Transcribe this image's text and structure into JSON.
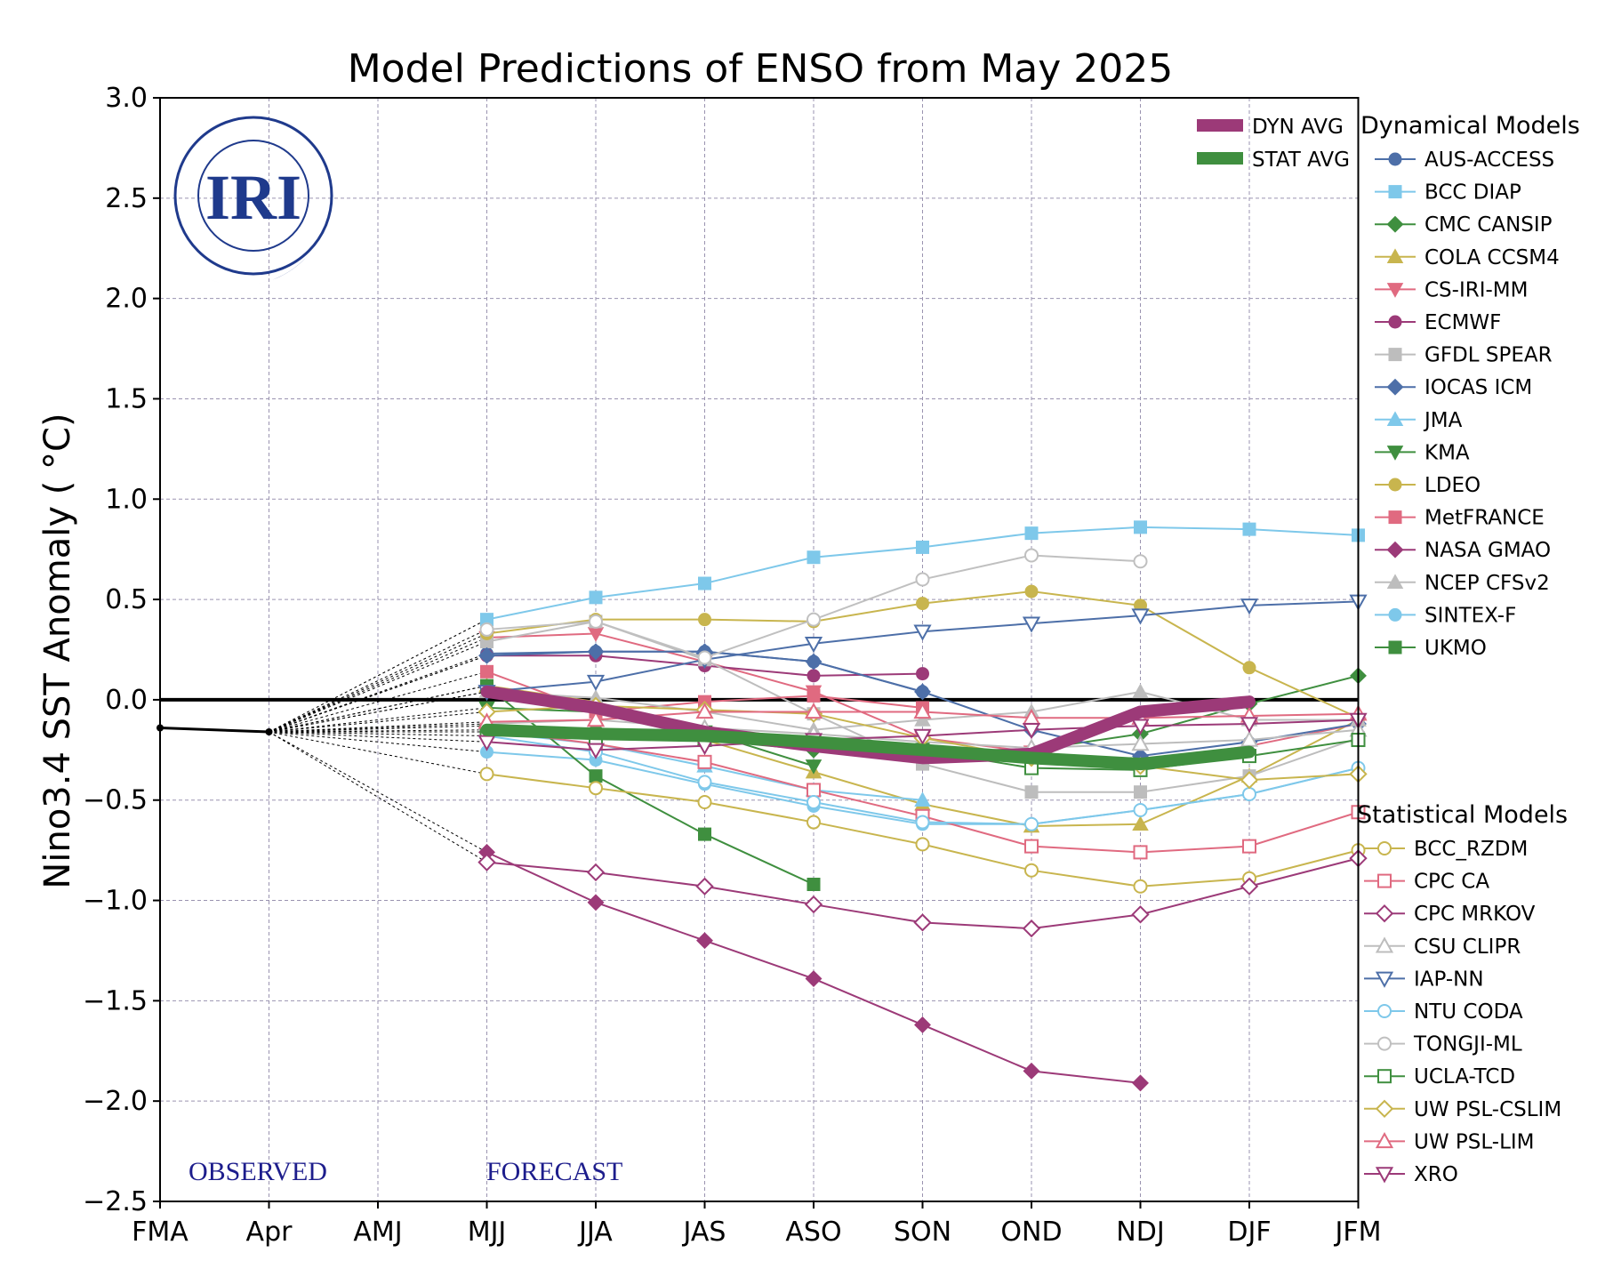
{
  "chart_data": {
    "type": "line",
    "title": "Model Predictions of ENSO from May 2025",
    "ylabel": "Nino3.4 SST Anomaly ( °C)",
    "xlabel": "",
    "categories": [
      "FMA",
      "Apr",
      "AMJ",
      "MJJ",
      "JJA",
      "JAS",
      "ASO",
      "SON",
      "OND",
      "NDJ",
      "DJF",
      "JFM"
    ],
    "ylim": [
      -2.5,
      3.0
    ],
    "yticks": [
      "3.0",
      "2.5",
      "2.0",
      "1.5",
      "1.0",
      "0.5",
      "0.0",
      "−0.5",
      "−1.0",
      "−1.5",
      "−2.0",
      "−2.5"
    ],
    "grid": true,
    "annotations": {
      "observed": "OBSERVED",
      "forecast": "FORECAST",
      "logo": "IRI"
    },
    "observed": {
      "x": [
        "FMA",
        "Apr"
      ],
      "values": [
        -0.14,
        -0.16
      ]
    },
    "legend": {
      "averages_position": "top-right",
      "dynamical_title": "Dynamical Models",
      "statistical_title": "Statistical Models"
    },
    "averages": [
      {
        "name": "DYN AVG",
        "color": "#9c3a78",
        "values": [
          0.04,
          -0.04,
          -0.16,
          -0.23,
          -0.29,
          -0.27,
          -0.06,
          -0.01
        ]
      },
      {
        "name": "STAT AVG",
        "color": "#3f8f3f",
        "values": [
          -0.15,
          -0.17,
          -0.18,
          -0.21,
          -0.25,
          -0.29,
          -0.32,
          -0.26
        ]
      }
    ],
    "dynamical": [
      {
        "name": "AUS-ACCESS",
        "color": "#4d6fa8",
        "marker": "circle",
        "fill": true,
        "values": [
          0.23,
          0.24,
          0.24,
          0.19,
          0.04
        ]
      },
      {
        "name": "BCC DIAP",
        "color": "#7ec8ea",
        "marker": "square",
        "fill": true,
        "values": [
          0.4,
          0.51,
          0.58,
          0.71,
          0.76,
          0.83,
          0.86,
          0.85,
          0.82
        ]
      },
      {
        "name": "CMC CANSIP",
        "color": "#3f8f3f",
        "marker": "diamond",
        "fill": true,
        "values": [
          -0.13,
          -0.15,
          -0.2,
          -0.25,
          -0.3,
          -0.25,
          -0.17,
          -0.02,
          0.12
        ]
      },
      {
        "name": "COLA CCSM4",
        "color": "#c8b54e",
        "marker": "triangle-up",
        "fill": true,
        "values": [
          0.07,
          -0.01,
          -0.2,
          -0.36,
          -0.52,
          -0.63,
          -0.62,
          -0.38,
          -0.1
        ]
      },
      {
        "name": "CS-IRI-MM",
        "color": "#e06a80",
        "marker": "triangle-down",
        "fill": true,
        "values": [
          0.31,
          0.33,
          0.19,
          0.04,
          -0.19,
          -0.26,
          -0.31,
          -0.23,
          -0.12
        ]
      },
      {
        "name": "ECMWF",
        "color": "#9c3a78",
        "marker": "circle",
        "fill": true,
        "values": [
          0.22,
          0.22,
          0.17,
          0.12,
          0.13
        ]
      },
      {
        "name": "GFDL SPEAR",
        "color": "#bdbdbd",
        "marker": "square",
        "fill": true,
        "values": [
          0.29,
          0.39,
          0.2,
          -0.07,
          -0.32,
          -0.46,
          -0.46,
          -0.38,
          -0.19
        ]
      },
      {
        "name": "IOCAS ICM",
        "color": "#4d6fa8",
        "marker": "diamond",
        "fill": true,
        "values": [
          0.22,
          0.24,
          0.24,
          0.19,
          0.04,
          -0.15,
          -0.28,
          -0.21,
          -0.12
        ]
      },
      {
        "name": "JMA",
        "color": "#7ec8ea",
        "marker": "triangle-up",
        "fill": true,
        "values": [
          -0.16,
          -0.22,
          -0.33,
          -0.45,
          -0.5
        ]
      },
      {
        "name": "KMA",
        "color": "#3f8f3f",
        "marker": "triangle-down",
        "fill": true,
        "values": [
          -0.04,
          -0.06,
          -0.16,
          -0.33
        ]
      },
      {
        "name": "LDEO",
        "color": "#c8b54e",
        "marker": "circle",
        "fill": true,
        "values": [
          0.33,
          0.4,
          0.4,
          0.39,
          0.48,
          0.54,
          0.47,
          0.16,
          -0.09
        ]
      },
      {
        "name": "MetFRANCE",
        "color": "#e06a80",
        "marker": "square",
        "fill": true,
        "values": [
          0.14,
          -0.06,
          -0.01,
          0.02,
          -0.04
        ]
      },
      {
        "name": "NASA GMAO",
        "color": "#9c3a78",
        "marker": "diamond",
        "fill": true,
        "values": [
          -0.76,
          -1.01,
          -1.2,
          -1.39,
          -1.62,
          -1.85,
          -1.91
        ]
      },
      {
        "name": "NCEP CFSv2",
        "color": "#bdbdbd",
        "marker": "triangle-up",
        "fill": true,
        "values": [
          0.04,
          0.01,
          -0.06,
          -0.15,
          -0.1,
          -0.06,
          0.04,
          -0.1,
          -0.1
        ]
      },
      {
        "name": "SINTEX-F",
        "color": "#7ec8ea",
        "marker": "circle",
        "fill": true,
        "values": [
          -0.26,
          -0.3,
          -0.42,
          -0.53,
          -0.62,
          -0.62,
          -0.55,
          -0.47,
          -0.34
        ]
      },
      {
        "name": "UKMO",
        "color": "#3f8f3f",
        "marker": "square",
        "fill": true,
        "values": [
          0.07,
          -0.38,
          -0.67,
          -0.92
        ]
      }
    ],
    "statistical": [
      {
        "name": "BCC_RZDM",
        "color": "#c8b54e",
        "marker": "circle",
        "fill": false,
        "values": [
          -0.37,
          -0.44,
          -0.51,
          -0.61,
          -0.72,
          -0.85,
          -0.93,
          -0.89,
          -0.75
        ]
      },
      {
        "name": "CPC CA",
        "color": "#e06a80",
        "marker": "square",
        "fill": false,
        "values": [
          -0.15,
          -0.22,
          -0.31,
          -0.45,
          -0.58,
          -0.73,
          -0.76,
          -0.73,
          -0.56
        ]
      },
      {
        "name": "CPC MRKOV",
        "color": "#9c3a78",
        "marker": "diamond",
        "fill": false,
        "values": [
          -0.81,
          -0.86,
          -0.93,
          -1.02,
          -1.11,
          -1.14,
          -1.07,
          -0.93,
          -0.79
        ]
      },
      {
        "name": "CSU CLIPR",
        "color": "#bdbdbd",
        "marker": "triangle-up",
        "fill": false,
        "values": [
          -0.12,
          -0.1,
          -0.14,
          -0.17,
          -0.21,
          -0.24,
          -0.22,
          -0.2,
          -0.15
        ]
      },
      {
        "name": "IAP-NN",
        "color": "#4d6fa8",
        "marker": "triangle-down",
        "fill": false,
        "values": [
          0.04,
          0.09,
          0.2,
          0.28,
          0.34,
          0.38,
          0.42,
          0.47,
          0.49
        ]
      },
      {
        "name": "NTU CODA",
        "color": "#7ec8ea",
        "marker": "circle",
        "fill": false,
        "values": [
          -0.18,
          -0.26,
          -0.41,
          -0.51,
          -0.61,
          -0.62,
          -0.55,
          -0.47,
          -0.34
        ]
      },
      {
        "name": "TONGJI-ML",
        "color": "#c0c0c0",
        "marker": "circle",
        "fill": false,
        "values": [
          0.35,
          0.39,
          0.21,
          0.4,
          0.6,
          0.72,
          0.69
        ]
      },
      {
        "name": "UCLA-TCD",
        "color": "#3f8f3f",
        "marker": "square",
        "fill": false,
        "values": [
          -0.16,
          -0.19,
          -0.2,
          -0.22,
          -0.25,
          -0.34,
          -0.35,
          -0.28,
          -0.2
        ]
      },
      {
        "name": "UW PSL-CSLIM",
        "color": "#c8b54e",
        "marker": "diamond",
        "fill": false,
        "values": [
          -0.06,
          -0.03,
          -0.05,
          -0.07,
          -0.19,
          -0.29,
          -0.33,
          -0.4,
          -0.37
        ]
      },
      {
        "name": "UW PSL-LIM",
        "color": "#e06a80",
        "marker": "triangle-up",
        "fill": false,
        "values": [
          -0.11,
          -0.1,
          -0.06,
          -0.06,
          -0.06,
          -0.09,
          -0.09,
          -0.08,
          -0.07
        ]
      },
      {
        "name": "XRO",
        "color": "#9c3a78",
        "marker": "triangle-down",
        "fill": false,
        "values": [
          -0.21,
          -0.25,
          -0.23,
          -0.2,
          -0.18,
          -0.15,
          -0.13,
          -0.12,
          -0.1
        ]
      }
    ]
  }
}
